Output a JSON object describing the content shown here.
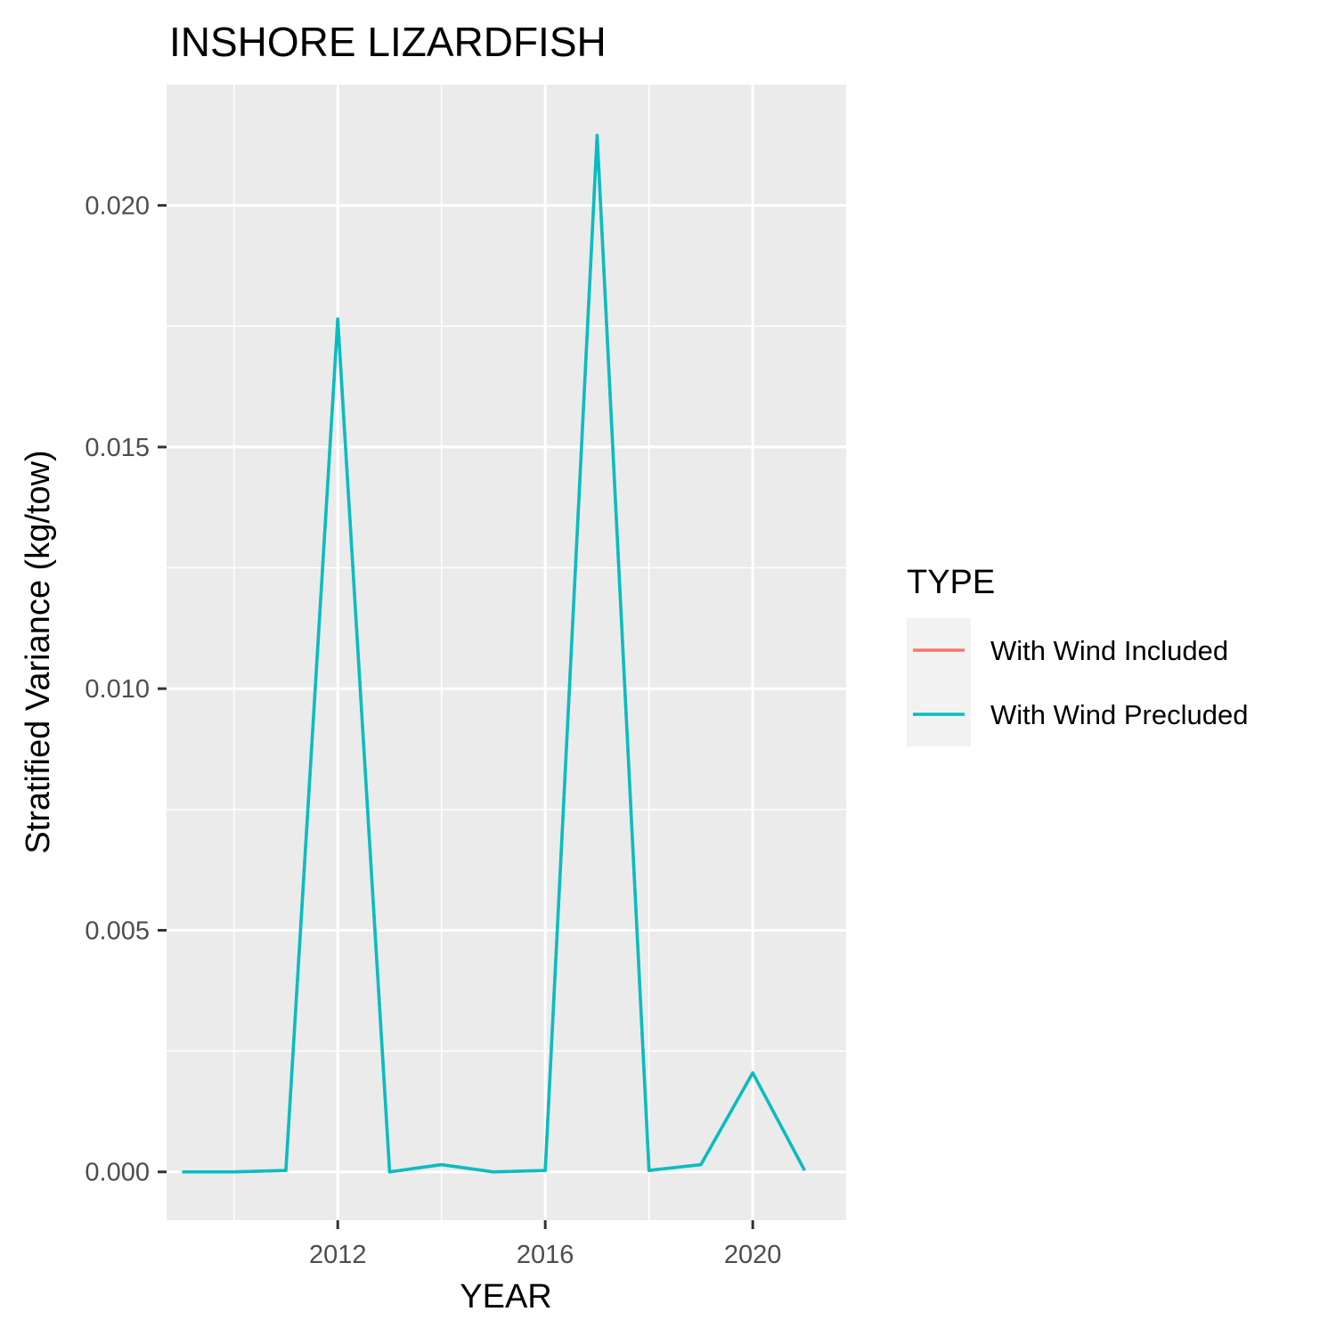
{
  "chart_data": {
    "type": "line",
    "title": "INSHORE LIZARDFISH",
    "xlabel": "YEAR",
    "ylabel": "Stratified Variance (kg/tow)",
    "xlim": [
      2008.7,
      2021.8
    ],
    "ylim": [
      -0.001,
      0.0225
    ],
    "x_ticks": [
      2012,
      2016,
      2020
    ],
    "x_tick_labels": [
      "2012",
      "2016",
      "2020"
    ],
    "x_minor_ticks": [
      2010,
      2014,
      2018
    ],
    "y_ticks": [
      0.0,
      0.005,
      0.01,
      0.015,
      0.02
    ],
    "y_tick_labels": [
      "0.000",
      "0.005",
      "0.010",
      "0.015",
      "0.020"
    ],
    "y_minor_ticks": [
      0.0025,
      0.0075,
      0.0125,
      0.0175
    ],
    "grid": true,
    "legend": {
      "title": "TYPE",
      "position": "right",
      "entries": [
        {
          "label": "With Wind Included",
          "color": "#F8766D"
        },
        {
          "label": "With Wind Precluded",
          "color": "#00BFC4"
        }
      ]
    },
    "x": [
      2009,
      2010,
      2011,
      2012,
      2013,
      2014,
      2015,
      2016,
      2017,
      2018,
      2019,
      2020,
      2021
    ],
    "series": [
      {
        "name": "With Wind Included",
        "color": "#F8766D",
        "values": [
          0.0,
          0.0,
          3e-05,
          0.01765,
          0.0,
          0.00015,
          0.0,
          3e-05,
          0.02145,
          3e-05,
          0.00015,
          0.00205,
          3e-05
        ]
      },
      {
        "name": "With Wind Precluded",
        "color": "#00BFC4",
        "values": [
          0.0,
          0.0,
          3e-05,
          0.01765,
          0.0,
          0.00015,
          0.0,
          3e-05,
          0.02145,
          3e-05,
          0.00015,
          0.00205,
          3e-05
        ]
      }
    ]
  }
}
